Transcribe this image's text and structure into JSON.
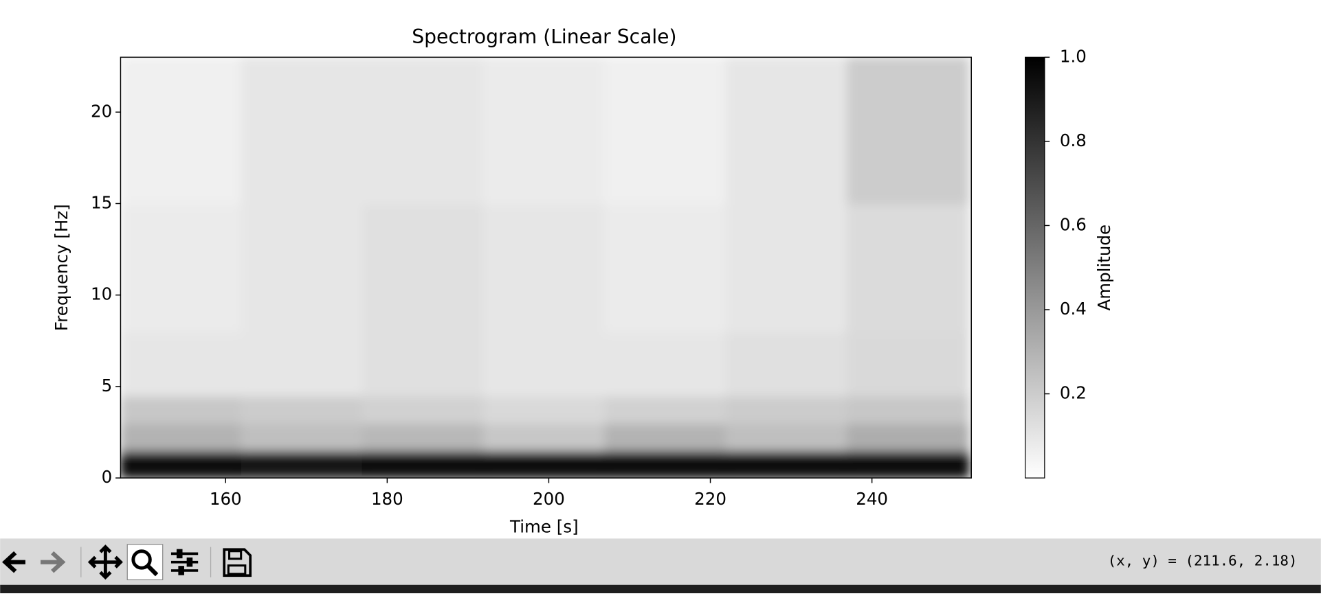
{
  "chart_data": {
    "type": "heatmap",
    "title": "Spectrogram (Linear Scale)",
    "x_label": "Time [s]",
    "y_label": "Frequency [Hz]",
    "x_edges": [
      147,
      162,
      177,
      192,
      207,
      222,
      237,
      252
    ],
    "y_edges": [
      0,
      1.5,
      3,
      4.5,
      8,
      15,
      23
    ],
    "z": [
      [
        0.95,
        0.93,
        0.95,
        0.94,
        0.96,
        0.95,
        0.94
      ],
      [
        0.3,
        0.25,
        0.28,
        0.22,
        0.3,
        0.25,
        0.32
      ],
      [
        0.22,
        0.2,
        0.18,
        0.15,
        0.18,
        0.2,
        0.22
      ],
      [
        0.1,
        0.1,
        0.12,
        0.1,
        0.1,
        0.12,
        0.15
      ],
      [
        0.08,
        0.1,
        0.12,
        0.1,
        0.08,
        0.1,
        0.14
      ],
      [
        0.06,
        0.1,
        0.1,
        0.08,
        0.06,
        0.1,
        0.2
      ]
    ],
    "colormap": "gray_r",
    "xlim": [
      147,
      252.3
    ],
    "xticks": [
      160,
      180,
      200,
      220,
      240
    ],
    "ylim": [
      0,
      23
    ],
    "yticks": [
      0,
      5,
      10,
      15,
      20
    ],
    "colorbar": {
      "label": "Amplitude",
      "clim": [
        0,
        1
      ],
      "ticks": [
        0.2,
        0.4,
        0.6,
        0.8,
        {
          "value": 1,
          "label": "1.0"
        }
      ]
    }
  },
  "toolbar": {
    "status": "(x, y) = (211.6, 2.18)"
  }
}
